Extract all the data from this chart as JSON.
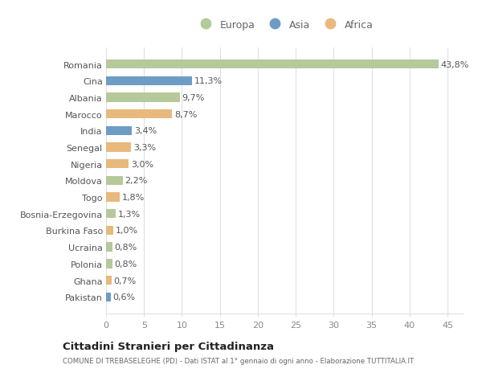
{
  "countries": [
    "Pakistan",
    "Ghana",
    "Polonia",
    "Ucraina",
    "Burkina Faso",
    "Bosnia-Erzegovina",
    "Togo",
    "Moldova",
    "Nigeria",
    "Senegal",
    "India",
    "Marocco",
    "Albania",
    "Cina",
    "Romania"
  ],
  "values": [
    0.6,
    0.7,
    0.8,
    0.8,
    1.0,
    1.3,
    1.8,
    2.2,
    3.0,
    3.3,
    3.4,
    8.7,
    9.7,
    11.3,
    43.8
  ],
  "labels": [
    "0,6%",
    "0,7%",
    "0,8%",
    "0,8%",
    "1,0%",
    "1,3%",
    "1,8%",
    "2,2%",
    "3,0%",
    "3,3%",
    "3,4%",
    "8,7%",
    "9,7%",
    "11,3%",
    "43,8%"
  ],
  "continents": [
    "Asia",
    "Africa",
    "Europa",
    "Europa",
    "Africa",
    "Europa",
    "Africa",
    "Europa",
    "Africa",
    "Africa",
    "Asia",
    "Africa",
    "Europa",
    "Asia",
    "Europa"
  ],
  "continent_colors": {
    "Europa": "#b5c99a",
    "Asia": "#6d9dc5",
    "Africa": "#e8b87d"
  },
  "legend_labels": [
    "Europa",
    "Asia",
    "Africa"
  ],
  "legend_colors": [
    "#b5c99a",
    "#6d9dc5",
    "#e8b87d"
  ],
  "xlim": [
    0,
    47
  ],
  "xticks": [
    0,
    5,
    10,
    15,
    20,
    25,
    30,
    35,
    40,
    45
  ],
  "title": "Cittadini Stranieri per Cittadinanza",
  "subtitle": "COMUNE DI TREBASELEGHE (PD) - Dati ISTAT al 1° gennaio di ogni anno - Elaborazione TUTTITALIA.IT",
  "background_color": "#ffffff",
  "grid_color": "#e0e0e0",
  "bar_height": 0.55,
  "label_fontsize": 8.0,
  "tick_fontsize": 8.0
}
